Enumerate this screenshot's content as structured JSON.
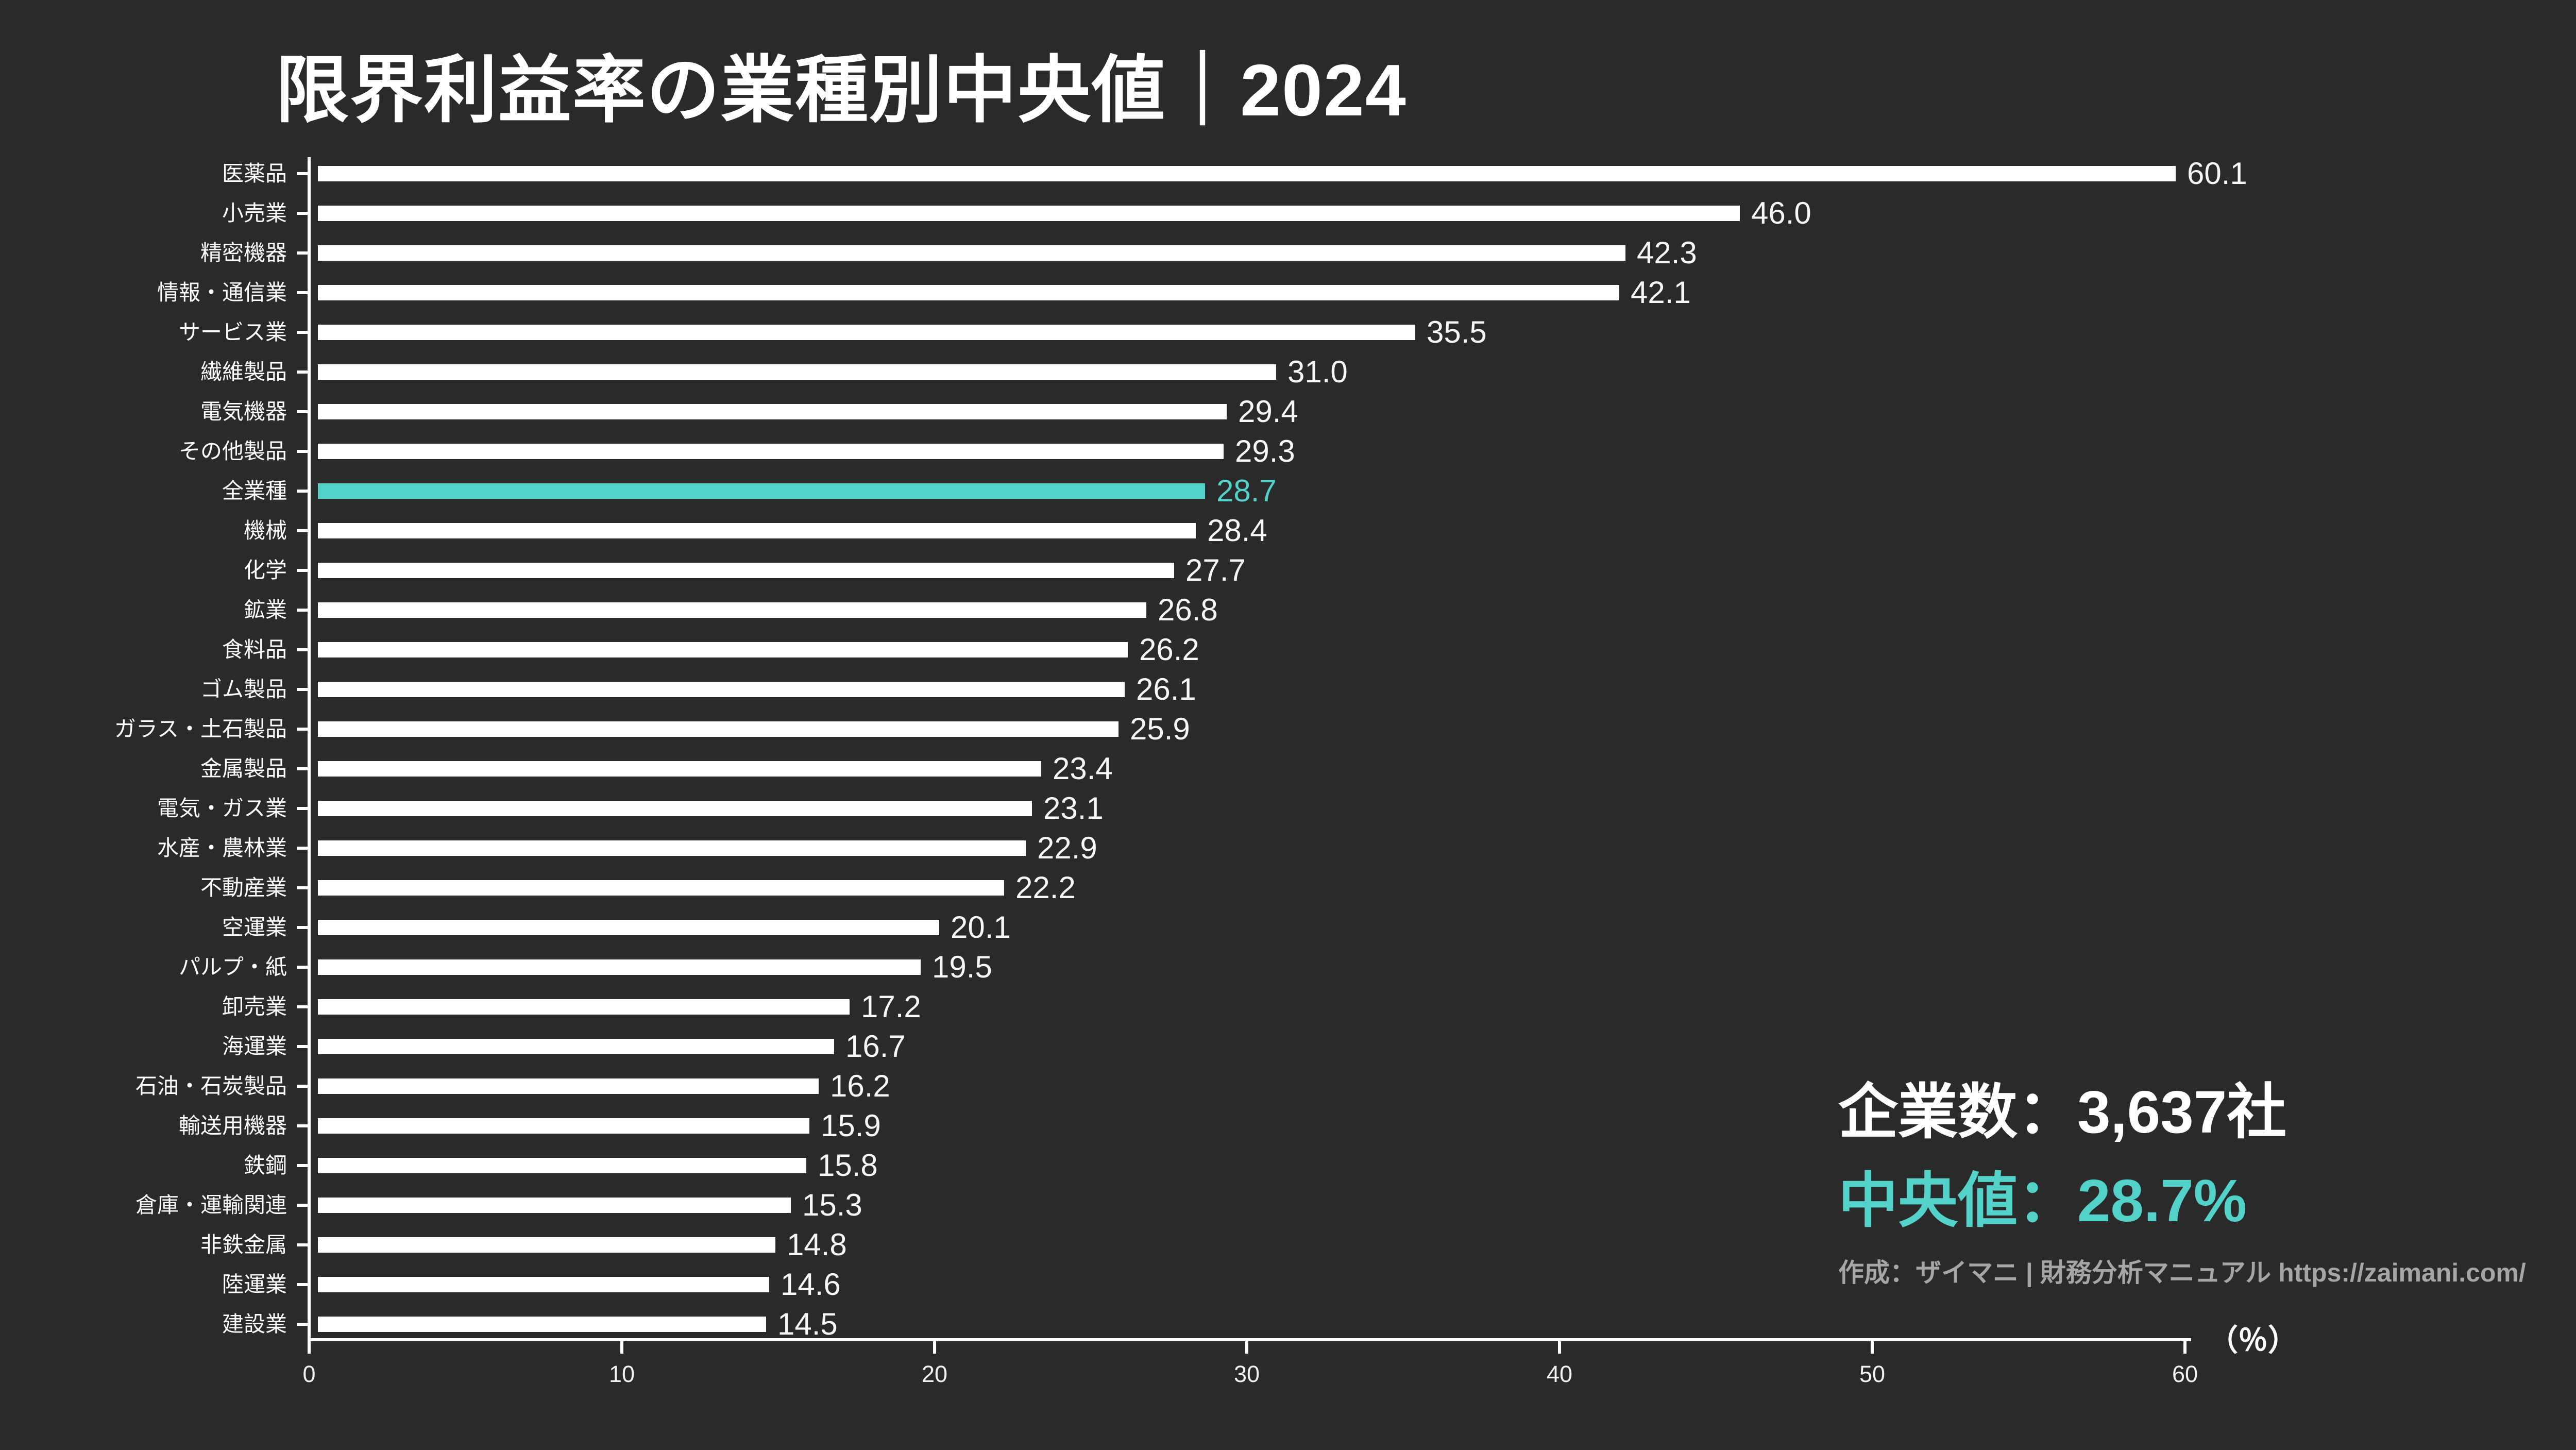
{
  "title": "限界利益率の業種別中央値｜2024",
  "chart_data": {
    "type": "bar",
    "orientation": "horizontal",
    "title": "限界利益率の業種別中央値｜2024",
    "categories": [
      "医薬品",
      "小売業",
      "精密機器",
      "情報・通信業",
      "サービス業",
      "繊維製品",
      "電気機器",
      "その他製品",
      "全業種",
      "機械",
      "化学",
      "鉱業",
      "食料品",
      "ゴム製品",
      "ガラス・土石製品",
      "金属製品",
      "電気・ガス業",
      "水産・農林業",
      "不動産業",
      "空運業",
      "パルプ・紙",
      "卸売業",
      "海運業",
      "石油・石炭製品",
      "輸送用機器",
      "鉄鋼",
      "倉庫・運輸関連",
      "非鉄金属",
      "陸運業",
      "建設業"
    ],
    "values": [
      60.1,
      46.0,
      42.3,
      42.1,
      35.5,
      31.0,
      29.4,
      29.3,
      28.7,
      28.4,
      27.7,
      26.8,
      26.2,
      26.1,
      25.9,
      23.4,
      23.1,
      22.9,
      22.2,
      20.1,
      19.5,
      17.2,
      16.7,
      16.2,
      15.9,
      15.8,
      15.3,
      14.8,
      14.6,
      14.5
    ],
    "highlight_category": "全業種",
    "highlight_index": 8,
    "xticks": [
      0,
      10,
      20,
      30,
      40,
      50,
      60
    ],
    "xlim": [
      0,
      60
    ],
    "unit_label": "（％）",
    "grid": false,
    "legend": "none",
    "bar_color": "#ffffff",
    "highlight_color": "#52d2c8",
    "background_color": "#2a2a2a"
  },
  "info": {
    "company_count": "企業数：3,637社",
    "median": "中央値：28.7%",
    "credit": "作成：ザイマニ | 財務分析マニュアル https://zaimani.com/"
  }
}
